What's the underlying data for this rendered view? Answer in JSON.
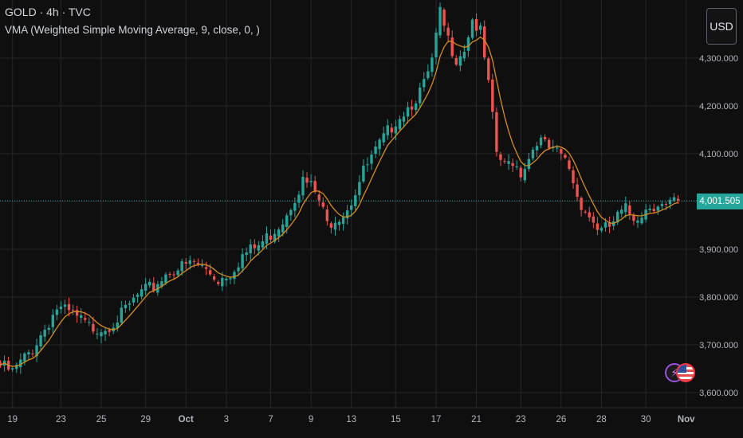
{
  "header": {
    "title": "GOLD · 4h · TVC",
    "indicator": "VMA (Weighted Simple Moving Average, 9, close, 0, )"
  },
  "currency_button": {
    "label": "USD"
  },
  "last_price": {
    "label": "4,001.505",
    "value": 4001.505,
    "color": "#26a69a"
  },
  "colors": {
    "background": "#0f0f0f",
    "grid": "#262626",
    "up": "#26a69a",
    "down": "#ef5350",
    "ma": "#d58c1f",
    "axis_text": "#b2b5be"
  },
  "chart_data": {
    "type": "candlestick",
    "ylim": [
      3580,
      4470
    ],
    "y_ticks": [
      {
        "value": 3600,
        "label": "3,600.000"
      },
      {
        "value": 3700,
        "label": "3,700.000"
      },
      {
        "value": 3800,
        "label": "3,800.000"
      },
      {
        "value": 3900,
        "label": "3,900.000"
      },
      {
        "value": 4000,
        "label": ""
      },
      {
        "value": 4100,
        "label": "4,100.000"
      },
      {
        "value": 4200,
        "label": "4,200.000"
      },
      {
        "value": 4300,
        "label": "4,300.000"
      }
    ],
    "x_ticks": [
      {
        "label": "19",
        "bar": 3,
        "bold": false
      },
      {
        "label": "23",
        "bar": 15,
        "bold": false
      },
      {
        "label": "25",
        "bar": 25,
        "bold": false
      },
      {
        "label": "29",
        "bar": 36,
        "bold": false
      },
      {
        "label": "Oct",
        "bar": 46,
        "bold": true
      },
      {
        "label": "3",
        "bar": 56,
        "bold": false
      },
      {
        "label": "7",
        "bar": 67,
        "bold": false
      },
      {
        "label": "9",
        "bar": 77,
        "bold": false
      },
      {
        "label": "13",
        "bar": 87,
        "bold": false
      },
      {
        "label": "15",
        "bar": 98,
        "bold": false
      },
      {
        "label": "17",
        "bar": 108,
        "bold": false
      },
      {
        "label": "21",
        "bar": 118,
        "bold": false
      },
      {
        "label": "23",
        "bar": 129,
        "bold": false
      },
      {
        "label": "26",
        "bar": 139,
        "bold": false
      },
      {
        "label": "28",
        "bar": 149,
        "bold": false
      },
      {
        "label": "30",
        "bar": 160,
        "bold": false
      },
      {
        "label": "Nov",
        "bar": 170,
        "bold": true
      }
    ],
    "series": [
      {
        "name": "GOLD 4h",
        "kind": "ohlc",
        "anchors": [
          [
            0,
            3665
          ],
          [
            3,
            3650
          ],
          [
            8,
            3700
          ],
          [
            14,
            3785
          ],
          [
            18,
            3770
          ],
          [
            22,
            3745
          ],
          [
            26,
            3745
          ],
          [
            30,
            3770
          ],
          [
            34,
            3810
          ],
          [
            38,
            3830
          ],
          [
            42,
            3865
          ],
          [
            45,
            3870
          ],
          [
            48,
            3880
          ],
          [
            51,
            3865
          ],
          [
            54,
            3845
          ],
          [
            57,
            3860
          ],
          [
            60,
            3895
          ],
          [
            64,
            3915
          ],
          [
            67,
            3940
          ],
          [
            70,
            3970
          ],
          [
            73,
            4020
          ],
          [
            75,
            4050
          ],
          [
            77,
            4040
          ],
          [
            79,
            4010
          ],
          [
            81,
            3960
          ],
          [
            83,
            3975
          ],
          [
            85,
            3985
          ],
          [
            87,
            4010
          ],
          [
            90,
            4070
          ],
          [
            94,
            4125
          ],
          [
            98,
            4180
          ],
          [
            102,
            4215
          ],
          [
            105,
            4250
          ],
          [
            107,
            4300
          ],
          [
            109,
            4400
          ],
          [
            111,
            4345
          ],
          [
            113,
            4310
          ],
          [
            115,
            4330
          ],
          [
            117,
            4390
          ],
          [
            119,
            4360
          ],
          [
            121,
            4250
          ],
          [
            123,
            4110
          ],
          [
            125,
            4080
          ],
          [
            127,
            4095
          ],
          [
            129,
            4070
          ],
          [
            131,
            4100
          ],
          [
            133,
            4140
          ],
          [
            135,
            4125
          ],
          [
            137,
            4110
          ],
          [
            139,
            4105
          ],
          [
            141,
            4080
          ],
          [
            143,
            4020
          ],
          [
            145,
            3990
          ],
          [
            147,
            3965
          ],
          [
            149,
            3945
          ],
          [
            151,
            3955
          ],
          [
            153,
            3975
          ],
          [
            155,
            3990
          ],
          [
            157,
            3975
          ],
          [
            159,
            3985
          ],
          [
            161,
            4000
          ],
          [
            163,
            4005
          ],
          [
            165,
            3995
          ],
          [
            167,
            4005
          ],
          [
            168,
            4002
          ]
        ]
      },
      {
        "name": "VMA",
        "kind": "line",
        "source": "weighted moving average of close, length 9"
      }
    ]
  }
}
